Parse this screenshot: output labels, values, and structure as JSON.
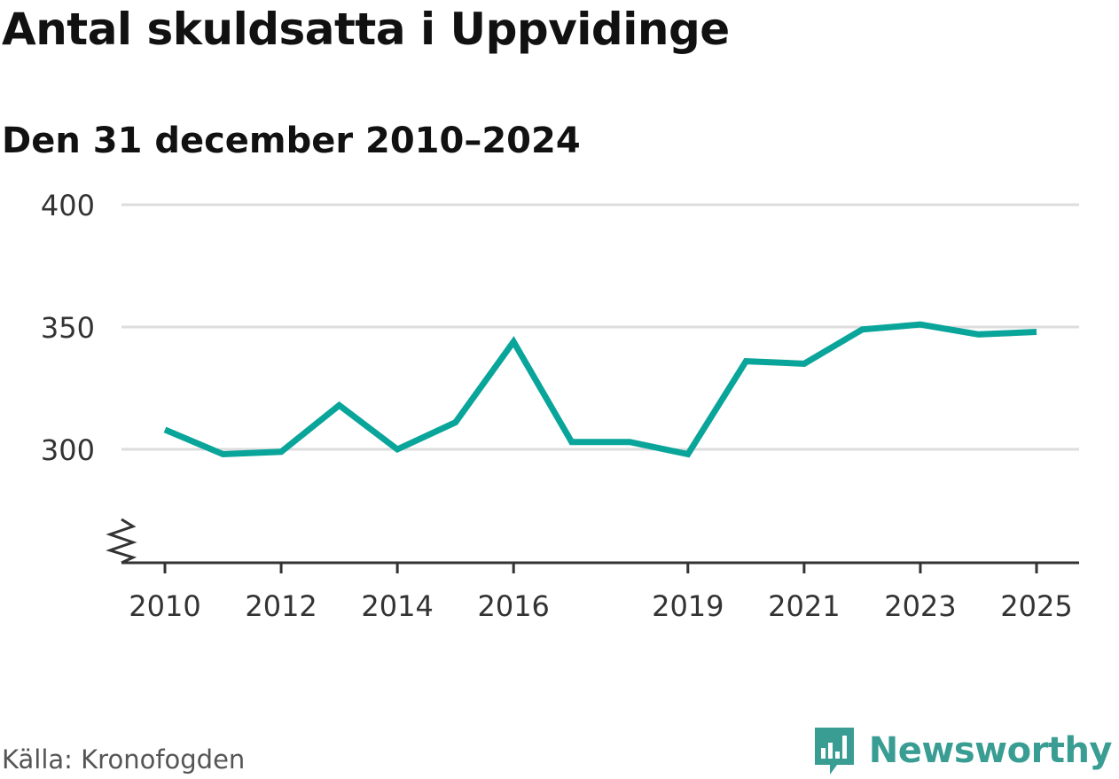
{
  "header": {
    "title": "Antal skuldsatta i Uppvidinge",
    "subtitle": "Den 31 december 2010–2024"
  },
  "footer": {
    "source": "Källa: Kronofogden",
    "brand": "Newsworthy",
    "brand_icon": "chart-speech-bubble-icon"
  },
  "colors": {
    "line": "#0aa59a",
    "grid": "#dddddd",
    "axis": "#333333",
    "brand": "#3a9d93"
  },
  "chart_data": {
    "type": "line",
    "title": "Antal skuldsatta i Uppvidinge",
    "subtitle": "Den 31 december 2010–2024",
    "x_ticks": [
      "2010",
      "2012",
      "2014",
      "2016",
      "2019",
      "2021",
      "2023",
      "2025"
    ],
    "y_ticks": [
      "300",
      "350",
      "400"
    ],
    "xlim": [
      2010,
      2025
    ],
    "ylim": [
      253,
      400
    ],
    "axis_break": true,
    "grid": true,
    "series": [
      {
        "x": [
          2010,
          2011,
          2012,
          2013,
          2014,
          2015,
          2016,
          2017,
          2018,
          2019,
          2020,
          2021,
          2022,
          2023,
          2024,
          2025
        ],
        "values": [
          308,
          298,
          299,
          318,
          300,
          311,
          344,
          303,
          303,
          298,
          336,
          335,
          349,
          351,
          347,
          348
        ]
      }
    ]
  }
}
